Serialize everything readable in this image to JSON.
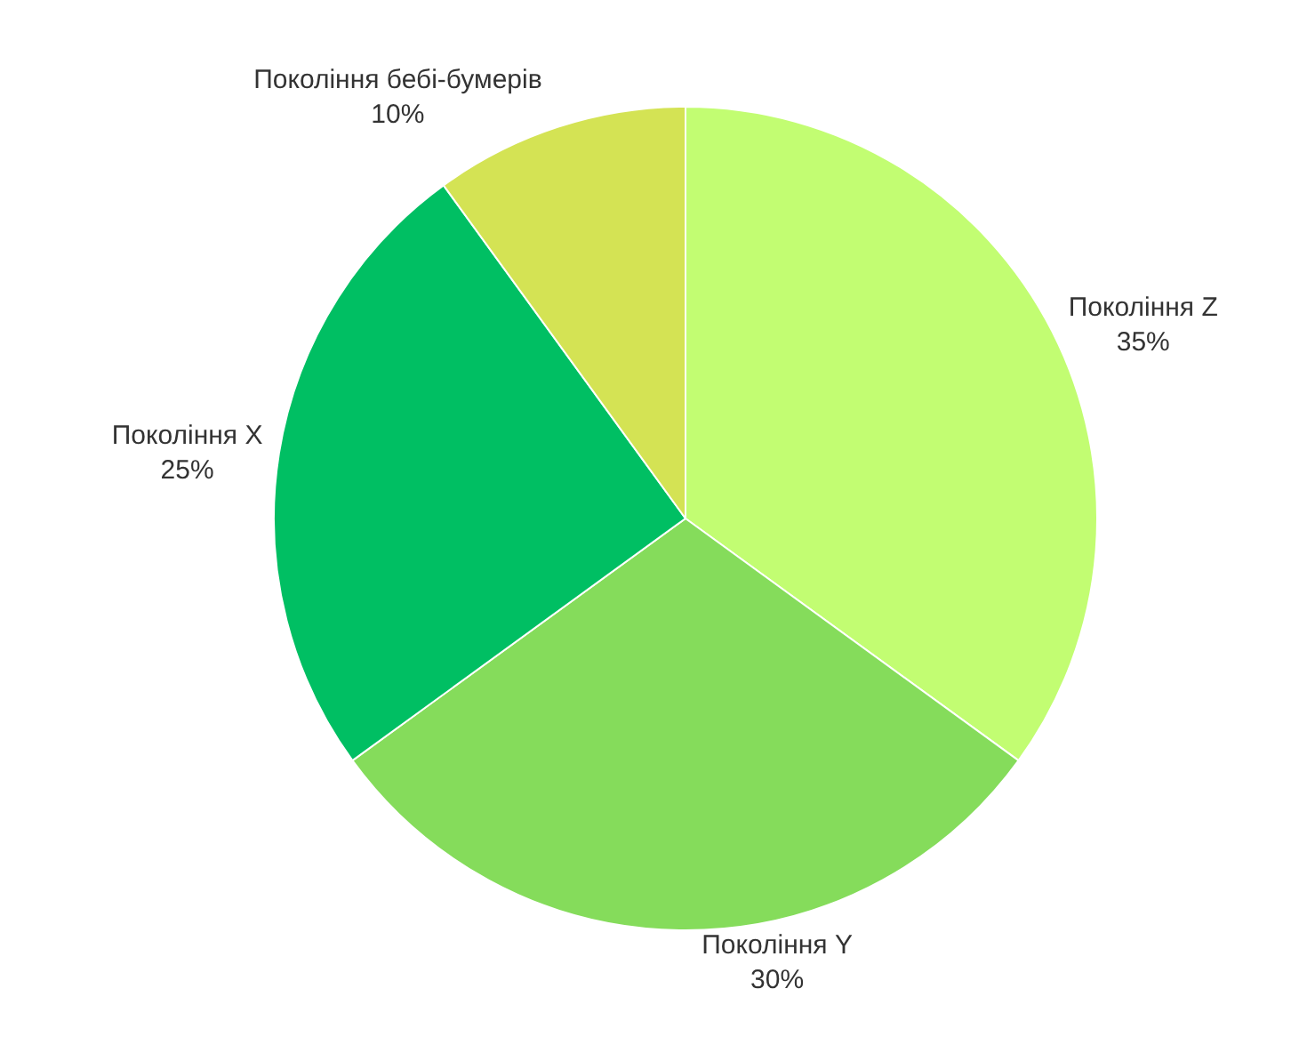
{
  "chart_data": {
    "type": "pie",
    "categories": [
      "Покоління Z",
      "Покоління Y",
      "Покоління X",
      "Покоління бебі-бумерів"
    ],
    "values": [
      35,
      30,
      25,
      10
    ],
    "value_labels": [
      "35%",
      "30%",
      "25%",
      "10%"
    ],
    "colors": [
      "#c2fd72",
      "#85dc5b",
      "#00bf63",
      "#d4e354"
    ],
    "legend": false
  }
}
